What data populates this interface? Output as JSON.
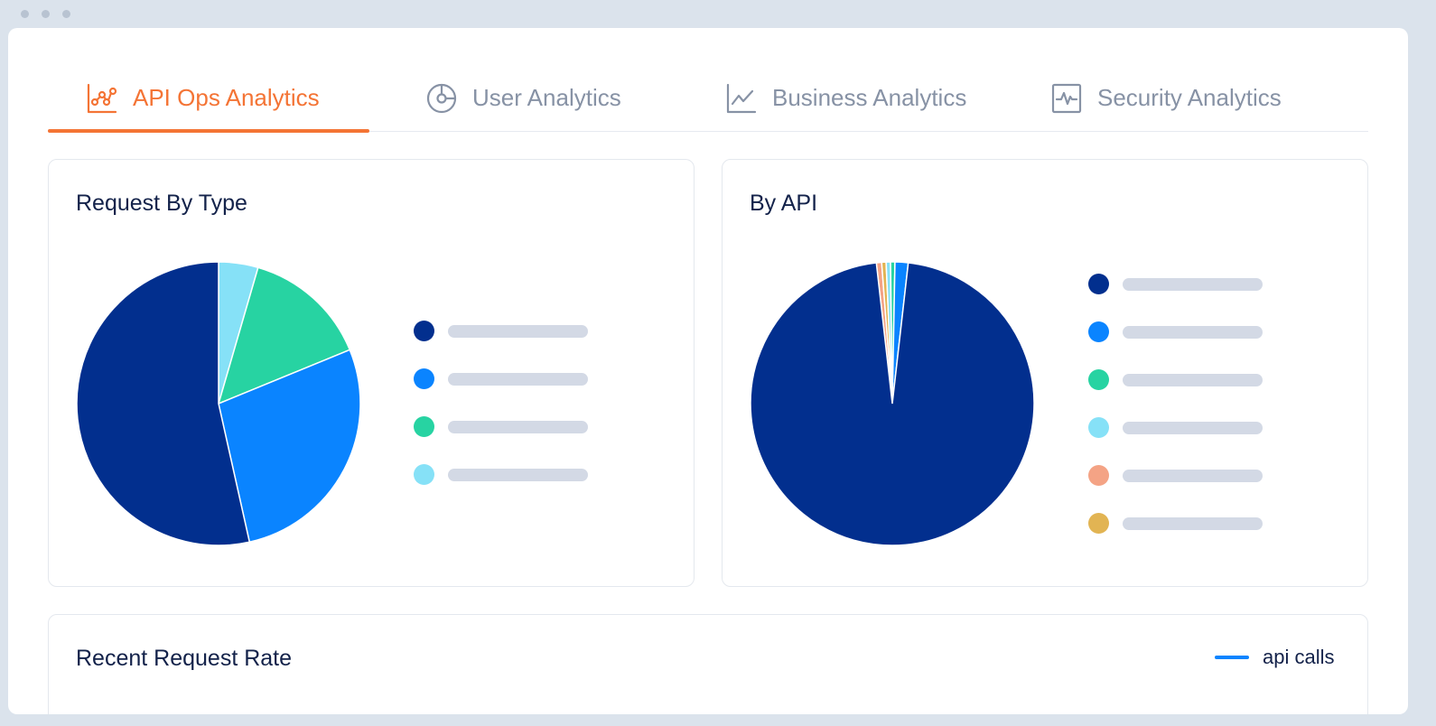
{
  "tabs": [
    {
      "label": "API Ops Analytics",
      "icon": "chart-analytics-icon",
      "active": true
    },
    {
      "label": "User Analytics",
      "icon": "pie-gauge-icon",
      "active": false
    },
    {
      "label": "Business Analytics",
      "icon": "line-chart-icon",
      "active": false
    },
    {
      "label": "Security Analytics",
      "icon": "pulse-monitor-icon",
      "active": false
    }
  ],
  "colors": {
    "accent": "#f47435",
    "navy": "#022f8e",
    "blue": "#0a84ff",
    "green": "#27d3a2",
    "light_blue": "#86e1f7",
    "salmon": "#f4a385",
    "gold": "#e2b453",
    "legend_placeholder": "#d3d9e5"
  },
  "cards": {
    "request_by_type": {
      "title": "Request By Type"
    },
    "by_api": {
      "title": "By API"
    },
    "recent_request_rate": {
      "title": "Recent Request Rate",
      "series_label": "api calls"
    }
  },
  "chart_data": [
    {
      "type": "pie",
      "title": "Request By Type",
      "slices": [
        {
          "value": 4.5,
          "color": "#86e1f7"
        },
        {
          "value": 14.3,
          "color": "#27d3a2"
        },
        {
          "value": 27.7,
          "color": "#0a84ff"
        },
        {
          "value": 53.5,
          "color": "#022f8e"
        }
      ],
      "legend": "right",
      "legend_colors": [
        "#022f8e",
        "#0a84ff",
        "#27d3a2",
        "#86e1f7"
      ]
    },
    {
      "type": "pie",
      "title": "By API",
      "slices": [
        {
          "value": 0.6,
          "color": "#f4a385"
        },
        {
          "value": 0.5,
          "color": "#e2b453"
        },
        {
          "value": 0.5,
          "color": "#86e1f7"
        },
        {
          "value": 0.5,
          "color": "#27d3a2"
        },
        {
          "value": 1.5,
          "color": "#0a84ff"
        },
        {
          "value": 96.4,
          "color": "#022f8e"
        }
      ],
      "start_value_offset": 1.8,
      "legend": "right",
      "legend_colors": [
        "#022f8e",
        "#0a84ff",
        "#27d3a2",
        "#86e1f7",
        "#f4a385",
        "#e2b453"
      ]
    },
    {
      "type": "line",
      "title": "Recent Request Rate",
      "series": [
        {
          "name": "api calls",
          "color": "#0a84ff"
        }
      ]
    }
  ]
}
